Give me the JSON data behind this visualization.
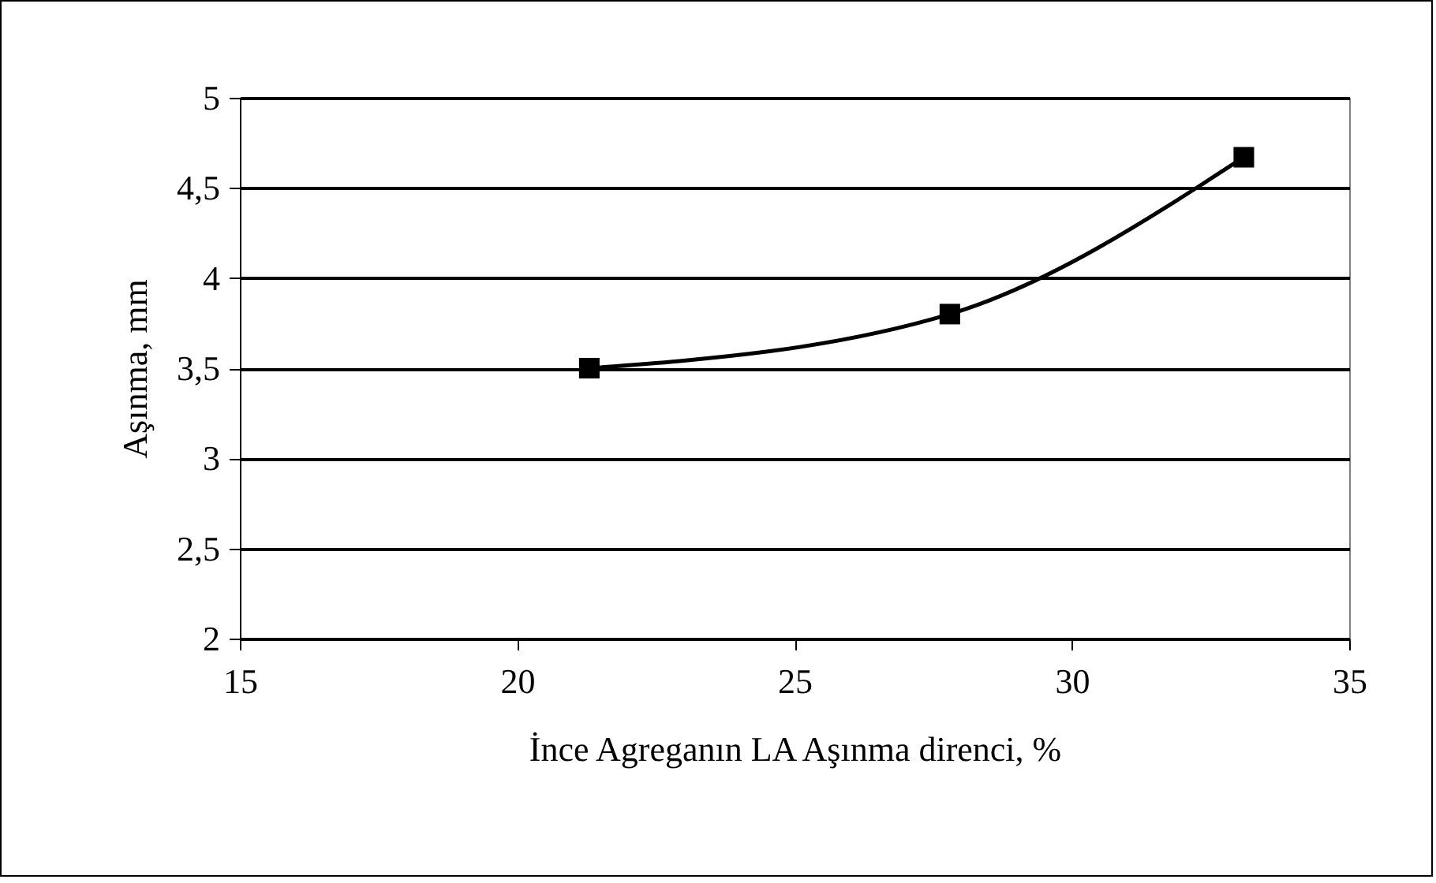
{
  "chart_data": {
    "type": "line",
    "xlabel": "İnce Agreganın LA Aşınma direnci, %",
    "ylabel": "Aşınma, mm",
    "x": [
      21.3,
      27.8,
      33.1
    ],
    "series": [
      {
        "color": "#000000",
        "values": [
          3.5,
          3.8,
          4.67
        ]
      }
    ],
    "xlim": [
      15,
      35
    ],
    "xticks": [
      15,
      20,
      25,
      30,
      35
    ],
    "ylim": [
      2,
      5
    ],
    "yticks": [
      2,
      {
        "value": 2.5,
        "label": "2,5"
      },
      3,
      {
        "value": 3.5,
        "label": "3,5"
      },
      4,
      {
        "value": 4.5,
        "label": "4,5"
      },
      5
    ],
    "grid": "y",
    "marker": "square",
    "line_style": "solid"
  }
}
